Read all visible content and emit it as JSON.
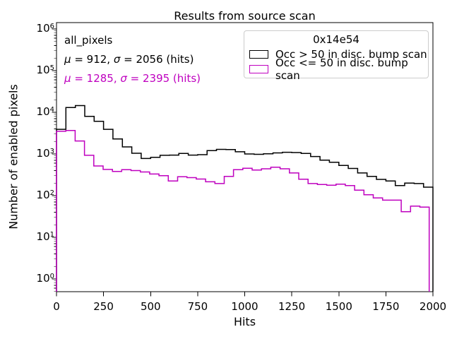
{
  "figure": {
    "title": "Results from source scan",
    "xlabel": "Hits",
    "ylabel": "Number of enabled pixels"
  },
  "annotations": {
    "dataset_label": "all_pixels",
    "stats_black": "μ = 912, σ = 2056 (hits)",
    "stats_magenta": "μ = 1285, σ = 2395 (hits)"
  },
  "legend": {
    "title": "0x14e54",
    "entries": [
      {
        "label": "Occ > 50 in disc. bump scan",
        "color": "#000000"
      },
      {
        "label": "Occ <= 50 in disc. bump scan",
        "color": "#bf00bf"
      }
    ]
  },
  "colors": {
    "series1": "#000000",
    "series2": "#bf00bf",
    "legend_border": "#cccccc"
  },
  "chart_data": {
    "type": "step-histogram",
    "title": "Results from source scan",
    "xlabel": "Hits",
    "ylabel": "Number of enabled pixels",
    "yscale": "log",
    "xlim": [
      0,
      2000
    ],
    "ylim": [
      0.5,
      1400000
    ],
    "x_ticks": [
      0,
      250,
      500,
      750,
      1000,
      1250,
      1500,
      1750,
      2000
    ],
    "y_tick_exponents": [
      0,
      1,
      2,
      3,
      4,
      5,
      6
    ],
    "legend_position": "upper right",
    "grid": false,
    "stats": [
      {
        "series": "Occ > 50 in disc. bump scan",
        "mu": 912,
        "sigma": 2056,
        "unit": "hits"
      },
      {
        "series": "Occ <= 50 in disc. bump scan",
        "mu": 1285,
        "sigma": 2395,
        "unit": "hits"
      }
    ],
    "series": [
      {
        "name": "Occ > 50 in disc. bump scan",
        "color": "#000000",
        "x_min": 0,
        "x_max": 2000,
        "bin_count": 40,
        "values": [
          3900,
          13000,
          14500,
          8000,
          6100,
          3900,
          2300,
          1480,
          1040,
          780,
          830,
          930,
          940,
          1030,
          940,
          960,
          1200,
          1290,
          1280,
          1130,
          1000,
          980,
          1010,
          1060,
          1100,
          1080,
          1030,
          870,
          710,
          630,
          530,
          450,
          350,
          290,
          245,
          225,
          175,
          200,
          195,
          160
        ]
      },
      {
        "name": "Occ <= 50 in disc. bump scan",
        "color": "#bf00bf",
        "x_min": 0,
        "x_max": 1980,
        "bin_count": 40,
        "values": [
          3500,
          3650,
          2050,
          930,
          515,
          425,
          380,
          420,
          400,
          370,
          330,
          300,
          225,
          285,
          270,
          250,
          215,
          195,
          290,
          420,
          455,
          410,
          440,
          480,
          440,
          350,
          248,
          195,
          185,
          178,
          188,
          175,
          135,
          105,
          88,
          78,
          78,
          41,
          56,
          53
        ]
      }
    ]
  }
}
